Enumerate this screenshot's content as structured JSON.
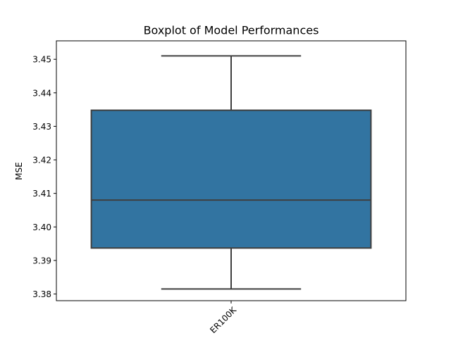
{
  "chart_data": {
    "type": "box",
    "title": "Boxplot of Model Performances",
    "xlabel": "",
    "ylabel": "MSE",
    "ylim": [
      3.378,
      3.4555
    ],
    "yticks": [
      "3.38",
      "3.39",
      "3.40",
      "3.41",
      "3.42",
      "3.43",
      "3.44",
      "3.45"
    ],
    "yticks_values": [
      3.38,
      3.39,
      3.4,
      3.41,
      3.42,
      3.43,
      3.44,
      3.45
    ],
    "categories": [
      "ER100K"
    ],
    "boxes": [
      {
        "whisker_low": 3.3815,
        "q1": 3.3937,
        "median": 3.408,
        "q3": 3.4348,
        "whisker_high": 3.451
      }
    ],
    "box_color": "#3274a1",
    "line_color": "#3f3f3f",
    "grid": false,
    "legend": "none"
  }
}
